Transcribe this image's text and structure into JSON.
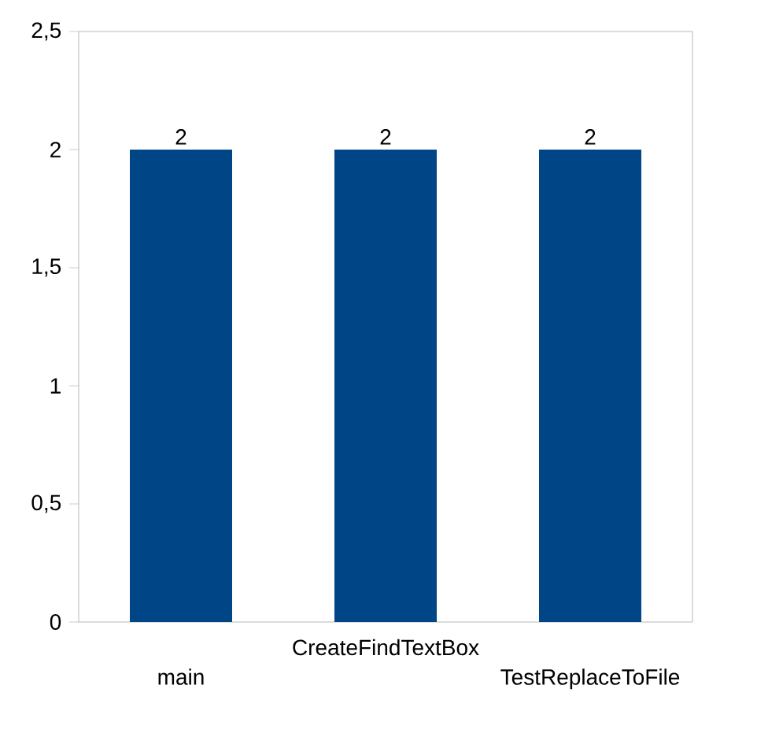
{
  "chart_data": {
    "type": "bar",
    "categories": [
      "main",
      "CreateFindTextBox",
      "TestReplaceToFile"
    ],
    "values": [
      2,
      2,
      2
    ],
    "color": "#004586",
    "ylim": [
      0,
      2.5
    ],
    "yticks": [
      0,
      {
        "value": 0.5,
        "label": "0,5"
      },
      1,
      {
        "value": 1.5,
        "label": "1,5"
      },
      2,
      {
        "value": 2.5,
        "label": "2,5"
      }
    ],
    "data_labels": true,
    "grid": false
  }
}
